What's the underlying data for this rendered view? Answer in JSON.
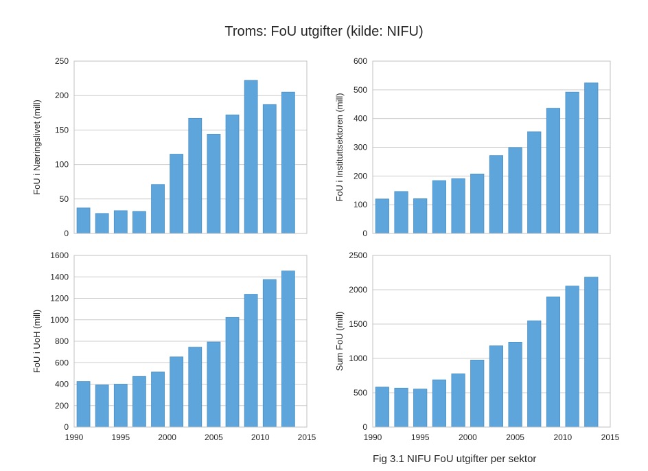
{
  "figure": {
    "title": "Troms: FoU utgifter (kilde: NIFU)",
    "caption": "Fig 3.1 NIFU FoU utgifter per sektor",
    "bar_color": "#5DA5DA",
    "bar_edge": "#4a8fc4",
    "grid_color": "#cccccc",
    "frame_color": "#c0c0c0"
  },
  "chart_data": [
    {
      "type": "bar",
      "ylabel": "FoU i Næringslivet (mill)",
      "x": [
        1991,
        1993,
        1995,
        1997,
        1999,
        2001,
        2003,
        2005,
        2007,
        2009,
        2011,
        2013
      ],
      "values": [
        37,
        29,
        33,
        32,
        71,
        115,
        167,
        144,
        172,
        222,
        187,
        205
      ],
      "xlim": [
        1990,
        2015
      ],
      "ylim": [
        0,
        250
      ],
      "yticks": [
        0,
        50,
        100,
        150,
        200,
        250
      ],
      "xticks": [],
      "grid": true
    },
    {
      "type": "bar",
      "ylabel": "FoU i Instituttsektoren (mill)",
      "x": [
        1991,
        1993,
        1995,
        1997,
        1999,
        2001,
        2003,
        2005,
        2007,
        2009,
        2011,
        2013
      ],
      "values": [
        120,
        146,
        121,
        184,
        191,
        207,
        271,
        299,
        354,
        436,
        492,
        524
      ],
      "xlim": [
        1990,
        2015
      ],
      "ylim": [
        0,
        600
      ],
      "yticks": [
        0,
        100,
        200,
        300,
        400,
        500,
        600
      ],
      "xticks": [],
      "grid": true
    },
    {
      "type": "bar",
      "ylabel": "FoU i UoH (mill)",
      "x": [
        1991,
        1993,
        1995,
        1997,
        1999,
        2001,
        2003,
        2005,
        2007,
        2009,
        2011,
        2013
      ],
      "values": [
        425,
        392,
        400,
        472,
        513,
        654,
        745,
        793,
        1022,
        1238,
        1375,
        1455
      ],
      "xlim": [
        1990,
        2015
      ],
      "ylim": [
        0,
        1600
      ],
      "yticks": [
        0,
        200,
        400,
        600,
        800,
        1000,
        1200,
        1400,
        1600
      ],
      "xticks": [
        1990,
        1995,
        2000,
        2005,
        2010,
        2015
      ],
      "grid": true
    },
    {
      "type": "bar",
      "ylabel": "Sum FoU (mill)",
      "x": [
        1991,
        1993,
        1995,
        1997,
        1999,
        2001,
        2003,
        2005,
        2007,
        2009,
        2011,
        2013
      ],
      "values": [
        582,
        567,
        554,
        688,
        775,
        976,
        1183,
        1236,
        1548,
        1896,
        2054,
        2184
      ],
      "xlim": [
        1990,
        2015
      ],
      "ylim": [
        0,
        2500
      ],
      "yticks": [
        0,
        500,
        1000,
        1500,
        2000,
        2500
      ],
      "xticks": [
        1990,
        1995,
        2000,
        2005,
        2010,
        2015
      ],
      "grid": true
    }
  ]
}
